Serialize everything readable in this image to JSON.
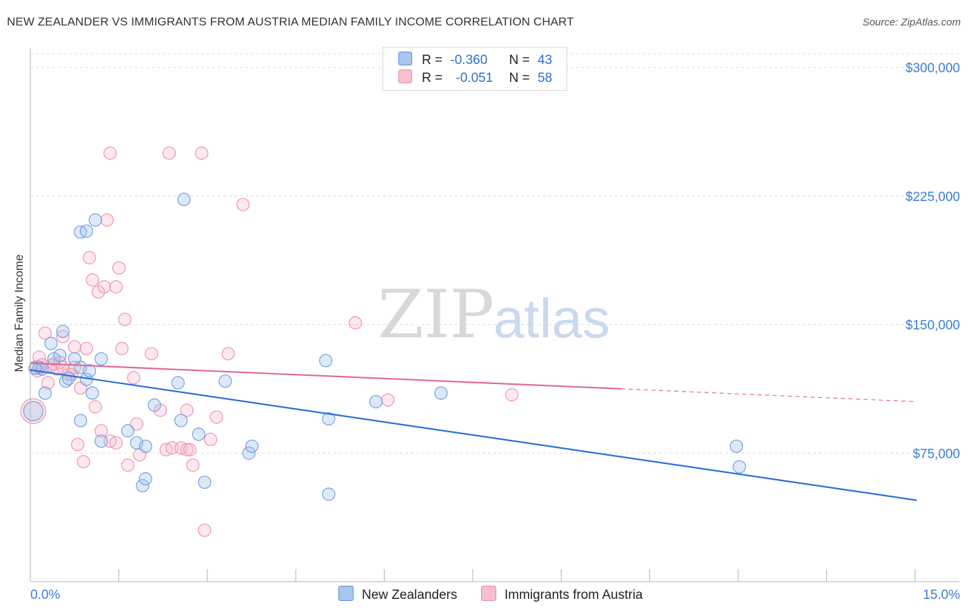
{
  "title": "NEW ZEALANDER VS IMMIGRANTS FROM AUSTRIA MEDIAN FAMILY INCOME CORRELATION CHART",
  "source": "Source: ZipAtlas.com",
  "watermark": {
    "zip": "ZIP",
    "atlas": "atlas"
  },
  "legend": {
    "r_label": "R =",
    "n_label": "N =",
    "rows": [
      {
        "r": "-0.360",
        "n": "43",
        "color": "#a8c6ee",
        "border": "#5b8fd8"
      },
      {
        "r": "-0.051",
        "n": "58",
        "color": "#f6bfd0",
        "border": "#e88aa8"
      }
    ]
  },
  "chart_data": {
    "type": "scatter",
    "title": "NEW ZEALANDER VS IMMIGRANTS FROM AUSTRIA MEDIAN FAMILY INCOME CORRELATION CHART",
    "xlabel": "",
    "ylabel": "Median Family Income",
    "xlim": [
      0,
      15
    ],
    "ylim": [
      0,
      310000
    ],
    "x_tick_labels": [
      "0.0%",
      "15.0%"
    ],
    "y_ticks": [
      75000,
      150000,
      225000,
      300000
    ],
    "y_tick_labels": [
      "$75,000",
      "$150,000",
      "$225,000",
      "$300,000"
    ],
    "grid": true,
    "series": [
      {
        "name": "New Zealanders",
        "color": "#6f9fe0",
        "fill": "rgba(160,192,236,0.35)",
        "trend": {
          "x": [
            0,
            15
          ],
          "y": [
            123500,
            47500
          ],
          "color": "#2a6fd6",
          "dashed_from": null
        },
        "points": [
          [
            0.05,
            99500,
            14
          ],
          [
            0.15,
            125000,
            9
          ],
          [
            0.2,
            124000,
            9
          ],
          [
            0.25,
            110000,
            9
          ],
          [
            0.35,
            139000,
            9
          ],
          [
            0.4,
            130000,
            9
          ],
          [
            0.5,
            132000,
            9
          ],
          [
            0.55,
            146000,
            9
          ],
          [
            0.6,
            117000,
            9
          ],
          [
            0.65,
            118500,
            9
          ],
          [
            0.75,
            130000,
            9
          ],
          [
            0.85,
            204000,
            9
          ],
          [
            0.85,
            125000,
            9
          ],
          [
            0.95,
            118000,
            9
          ],
          [
            0.85,
            94000,
            9
          ],
          [
            0.95,
            204500,
            9
          ],
          [
            1.0,
            123000,
            9
          ],
          [
            1.1,
            211000,
            9
          ],
          [
            1.2,
            130000,
            9
          ],
          [
            1.05,
            110000,
            9
          ],
          [
            1.2,
            82000,
            9
          ],
          [
            1.65,
            88000,
            9
          ],
          [
            1.8,
            81000,
            9
          ],
          [
            1.9,
            56000,
            9
          ],
          [
            1.95,
            60000,
            9
          ],
          [
            1.95,
            79000,
            9
          ],
          [
            2.1,
            103000,
            9
          ],
          [
            2.5,
            116000,
            9
          ],
          [
            2.55,
            94000,
            9
          ],
          [
            2.6,
            223000,
            9
          ],
          [
            2.85,
            86000,
            9
          ],
          [
            2.95,
            58000,
            9
          ],
          [
            3.3,
            117000,
            9
          ],
          [
            3.7,
            75000,
            9
          ],
          [
            3.75,
            79000,
            9
          ],
          [
            5.0,
            129000,
            9
          ],
          [
            5.05,
            95000,
            9
          ],
          [
            5.05,
            51000,
            9
          ],
          [
            5.85,
            105000,
            9
          ],
          [
            6.95,
            110000,
            9
          ],
          [
            11.95,
            79000,
            9
          ],
          [
            12.0,
            67000,
            9
          ],
          [
            0.08,
            124500,
            9
          ]
        ]
      },
      {
        "name": "Immigrants from Austria",
        "color": "#ee93b0",
        "fill": "rgba(246,190,206,0.35)",
        "trend": {
          "x": [
            0,
            15
          ],
          "y": [
            127500,
            105000
          ],
          "color": "#e36a92",
          "dashed_from": 10.0
        },
        "points": [
          [
            0.05,
            99500,
            18
          ],
          [
            0.1,
            125000,
            10
          ],
          [
            0.15,
            131000,
            9
          ],
          [
            0.2,
            126500,
            9
          ],
          [
            0.25,
            145000,
            9
          ],
          [
            0.3,
            116000,
            9
          ],
          [
            0.35,
            126000,
            9
          ],
          [
            0.45,
            124000,
            9
          ],
          [
            0.5,
            128000,
            9
          ],
          [
            0.55,
            143000,
            9
          ],
          [
            0.65,
            121000,
            9
          ],
          [
            0.7,
            121000,
            9
          ],
          [
            0.75,
            125000,
            9
          ],
          [
            0.75,
            137000,
            9
          ],
          [
            0.8,
            80000,
            9
          ],
          [
            0.85,
            113000,
            9
          ],
          [
            0.9,
            70000,
            9
          ],
          [
            0.95,
            136000,
            9
          ],
          [
            1.0,
            189000,
            9
          ],
          [
            1.05,
            176000,
            9
          ],
          [
            1.1,
            102000,
            9
          ],
          [
            1.15,
            169000,
            9
          ],
          [
            1.2,
            88000,
            9
          ],
          [
            1.25,
            172000,
            9
          ],
          [
            1.3,
            211000,
            9
          ],
          [
            1.35,
            250000,
            9
          ],
          [
            1.35,
            82000,
            9
          ],
          [
            1.45,
            81000,
            9
          ],
          [
            1.45,
            172000,
            9
          ],
          [
            1.5,
            183000,
            9
          ],
          [
            1.55,
            136000,
            9
          ],
          [
            1.6,
            153000,
            9
          ],
          [
            1.65,
            68000,
            9
          ],
          [
            1.75,
            119000,
            9
          ],
          [
            1.8,
            92000,
            9
          ],
          [
            1.85,
            74000,
            9
          ],
          [
            2.05,
            133000,
            9
          ],
          [
            2.2,
            100000,
            9
          ],
          [
            2.3,
            77000,
            9
          ],
          [
            2.35,
            250000,
            9
          ],
          [
            2.4,
            78000,
            9
          ],
          [
            2.55,
            78000,
            9
          ],
          [
            2.65,
            100000,
            9
          ],
          [
            2.65,
            77000,
            9
          ],
          [
            2.7,
            77000,
            9
          ],
          [
            2.75,
            68000,
            9
          ],
          [
            2.9,
            250000,
            9
          ],
          [
            2.95,
            30000,
            9
          ],
          [
            3.05,
            83000,
            9
          ],
          [
            3.15,
            96000,
            9
          ],
          [
            3.35,
            133000,
            9
          ],
          [
            3.6,
            220000,
            9
          ],
          [
            5.5,
            151000,
            9
          ],
          [
            6.05,
            106000,
            9
          ],
          [
            8.15,
            109000,
            9
          ],
          [
            0.12,
            123000,
            9
          ],
          [
            0.4,
            127000,
            9
          ],
          [
            0.55,
            125000,
            9
          ]
        ]
      }
    ]
  },
  "bottom_legend": [
    {
      "label": "New Zealanders",
      "color": "#a8c6ee",
      "border": "#5b8fd8"
    },
    {
      "label": "Immigrants from Austria",
      "color": "#f6bfd0",
      "border": "#e88aa8"
    }
  ]
}
